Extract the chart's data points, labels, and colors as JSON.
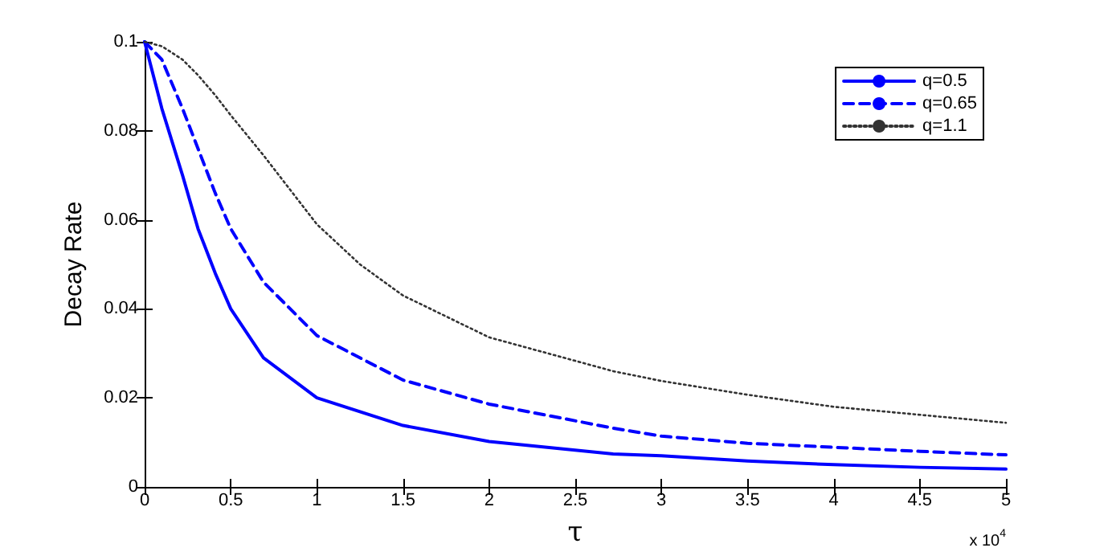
{
  "chart_data": {
    "type": "line",
    "xlabel": "τ",
    "ylabel": "Decay Rate",
    "annotations": [
      "x 10$^{4}$"
    ],
    "xlim": [
      0,
      5
    ],
    "xticks": [
      0,
      0.5,
      1,
      1.5,
      2,
      2.5,
      3,
      3.5,
      4,
      4.5,
      5
    ],
    "ylim": [
      0,
      0.1
    ],
    "yticks": [
      0,
      0.02,
      0.04,
      0.06,
      0.08,
      0.1
    ],
    "grid": false,
    "legend": "top right",
    "marker": "none",
    "x": [
      0,
      0.1,
      0.22,
      0.31,
      0.41,
      0.5,
      0.69,
      1,
      1.5,
      2,
      2.72,
      3,
      3.5,
      4,
      4.5,
      5
    ],
    "series": [
      {
        "name": "q=0.5",
        "color": "#0000ff",
        "line_style": "solid",
        "values": [
          0.1,
          0.085,
          0.07,
          0.058,
          0.048,
          0.04,
          0.029,
          0.02,
          0.0138,
          0.0102,
          0.0074,
          0.007,
          0.0058,
          0.005,
          0.0044,
          0.004
        ]
      },
      {
        "name": "q=0.65",
        "color": "#0000ff",
        "line_style": "dashed",
        "values": [
          0.1,
          0.096,
          0.085,
          0.076,
          0.066,
          0.058,
          0.046,
          0.034,
          0.024,
          0.0186,
          0.0132,
          0.0114,
          0.0098,
          0.0089,
          0.008,
          0.0072
        ]
      },
      {
        "name": "q=1.1",
        "color": "#333333",
        "line_style": "dotted",
        "x": [
          0,
          0.1,
          0.22,
          0.31,
          0.41,
          0.5,
          0.69,
          1,
          1.25,
          1.5,
          2,
          2.72,
          3,
          3.5,
          4,
          4.5,
          5
        ],
        "values": [
          0.1,
          0.099,
          0.096,
          0.0925,
          0.088,
          0.0835,
          0.0745,
          0.059,
          0.05,
          0.043,
          0.0336,
          0.026,
          0.0238,
          0.0207,
          0.018,
          0.0162,
          0.0144
        ]
      }
    ]
  }
}
